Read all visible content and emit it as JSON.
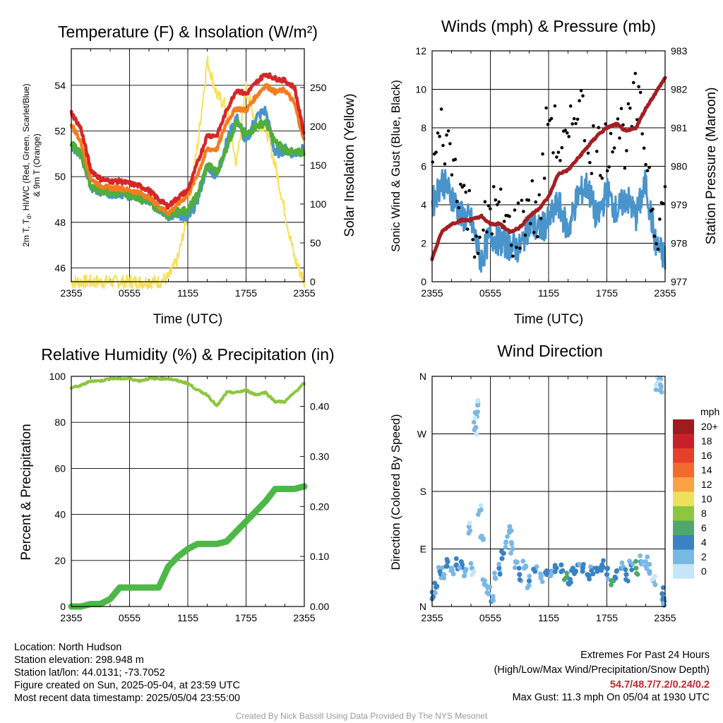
{
  "colors": {
    "t2m": "#d62728",
    "tdew": "#4a94cc",
    "hiwc": "#4fae3c",
    "t9m": "#f47d20",
    "solar": "#f7e05a",
    "wind": "#4a94cc",
    "gust": "#000000",
    "pressure": "#a31f24",
    "rh": "#8cc63f",
    "precip": "#4db848",
    "extremes": "#c0272d"
  },
  "xticks": [
    "2355",
    "0555",
    "1155",
    "1755",
    "2355"
  ],
  "panels": {
    "temperature": {
      "title": "Temperature (F) & Insolation (W/m²)",
      "xlabel": "Time (UTC)",
      "ylabel_left": [
        "2m T, T",
        "d",
        ", HI/WC (Red, Green, Scarlet/Blue)",
        "& 9m T (Orange)"
      ],
      "ylabel_right": "Solar Insolation (Yellow)",
      "left_ticks": [
        "46",
        "48",
        "50",
        "52",
        "54"
      ],
      "right_ticks": [
        "0",
        "50",
        "100",
        "150",
        "200",
        "250"
      ]
    },
    "winds": {
      "title": "Winds (mph) & Pressure (mb)",
      "xlabel": "Time (UTC)",
      "ylabel_left": "Sonic Wind & Gust (Blue, Black)",
      "ylabel_right": "Station Pressure (Maroon)",
      "left_ticks": [
        "0",
        "2",
        "4",
        "6",
        "8",
        "10",
        "12"
      ],
      "right_ticks": [
        "977",
        "978",
        "979",
        "980",
        "981",
        "982",
        "983"
      ]
    },
    "humidity": {
      "title": "Relative Humidity (%) & Precipitation (in)",
      "ylabel_left": "Percent & Precipitation",
      "left_ticks": [
        "0",
        "20",
        "40",
        "60",
        "80",
        "100"
      ],
      "right_ticks": [
        "0.00",
        "0.10",
        "0.20",
        "0.30",
        "0.40"
      ]
    },
    "direction": {
      "title": "Wind Direction",
      "ylabel_left": "Direction (Colored By Speed)",
      "left_ticks": [
        "N",
        "E",
        "S",
        "W",
        "N"
      ],
      "legend_title": "mph",
      "legend_labels": [
        "20+",
        "18",
        "16",
        "14",
        "12",
        "10",
        "8",
        "6",
        "4",
        "2",
        "0"
      ],
      "legend_colors": [
        "#9e1b1f",
        "#c8202a",
        "#e4402c",
        "#f26a2e",
        "#f9a243",
        "#ede15b",
        "#8cc63f",
        "#4fa86b",
        "#3a82c4",
        "#7ab8e4",
        "#c4e6f7"
      ]
    }
  },
  "info": {
    "location": "Location: North Hudson",
    "elevation": "Station elevation: 298.948 m",
    "latlon": "Station lat/lon: 44.0131; -73.7052",
    "created": "Figure created on Sun, 2025-05-04, at 23:59 UTC",
    "recent": "Most recent data timestamp: 2025/05/04 23:55:00",
    "extremes_title": "Extremes For Past 24 Hours",
    "extremes_sub": "(High/Low/Max Wind/Precipitation/Snow Depth)",
    "extremes_values": "54.7/48.7/7.2/0.24/0.2",
    "max_gust": "Max Gust: 11.3 mph On 05/04 at 1930 UTC",
    "credit": "Created By Nick Bassill Using Data Provided By The NYS Mesonet"
  },
  "chart_data": [
    {
      "type": "line",
      "title": "Temperature (F) & Insolation (W/m²)",
      "xlabel": "Time (UTC)",
      "xlim": [
        0,
        24
      ],
      "ylim": [
        45.4,
        55.6
      ],
      "y2lim": [
        0,
        300
      ],
      "x": [
        0,
        1,
        2,
        3,
        4,
        5,
        6,
        7,
        8,
        9,
        10,
        11,
        12,
        13,
        14,
        15,
        16,
        17,
        18,
        19,
        20,
        21,
        22,
        23,
        24
      ],
      "series": [
        {
          "key": "t2m",
          "values": [
            52.8,
            52.1,
            50.3,
            49.9,
            49.8,
            49.8,
            49.7,
            49.6,
            49.4,
            49.0,
            48.7,
            49.1,
            49.4,
            50.6,
            51.8,
            51.8,
            52.9,
            53.8,
            53.6,
            54.1,
            54.5,
            54.3,
            54.2,
            53.9,
            51.8
          ]
        },
        {
          "key": "t9m",
          "values": [
            52.3,
            51.5,
            49.9,
            49.6,
            49.5,
            49.5,
            49.4,
            49.3,
            49.1,
            48.7,
            48.4,
            48.8,
            49.2,
            50.1,
            51.2,
            51.2,
            52.4,
            53.0,
            52.9,
            53.5,
            54.0,
            53.7,
            53.8,
            53.2,
            51.5
          ]
        },
        {
          "key": "hiwc",
          "values": [
            51.4,
            51.0,
            49.6,
            49.4,
            49.3,
            49.3,
            49.2,
            49.1,
            48.9,
            48.6,
            48.3,
            48.5,
            48.5,
            49.2,
            50.5,
            50.2,
            51.3,
            52.4,
            51.8,
            52.2,
            52.4,
            51.5,
            51.2,
            51.0,
            51.1
          ]
        },
        {
          "key": "tdew",
          "values": [
            51.4,
            51.0,
            49.5,
            49.4,
            49.3,
            49.3,
            49.2,
            49.1,
            48.9,
            48.6,
            48.3,
            48.4,
            48.1,
            49.0,
            50.5,
            50.0,
            51.5,
            52.6,
            51.5,
            52.6,
            52.9,
            51.0,
            51.2,
            51.0,
            51.2
          ]
        },
        {
          "key": "solar",
          "axis": "right",
          "values": [
            0,
            0,
            0,
            0,
            0,
            0,
            0,
            0,
            0,
            0,
            5,
            30,
            90,
            175,
            285,
            240,
            225,
            150,
            250,
            205,
            200,
            150,
            90,
            30,
            0
          ]
        }
      ]
    },
    {
      "type": "line",
      "title": "Winds (mph) & Pressure (mb)",
      "xlabel": "Time (UTC)",
      "xlim": [
        0,
        24
      ],
      "ylim": [
        0,
        12
      ],
      "y2lim": [
        977,
        983
      ],
      "x": [
        0,
        1,
        2,
        3,
        4,
        5,
        6,
        7,
        8,
        9,
        10,
        11,
        12,
        13,
        14,
        15,
        16,
        17,
        18,
        19,
        20,
        21,
        22,
        23,
        24
      ],
      "series": [
        {
          "key": "wind",
          "values": [
            4.0,
            5.3,
            4.5,
            3.4,
            3.2,
            1.1,
            2.4,
            2.1,
            1.9,
            1.7,
            3.0,
            2.7,
            3.1,
            4.1,
            2.6,
            4.5,
            5.0,
            3.2,
            4.7,
            3.6,
            4.4,
            3.4,
            5.1,
            2.0,
            1.2
          ]
        },
        {
          "key": "gust",
          "values": [
            5.8,
            7.9,
            6.5,
            4.9,
            3.3,
            2.0,
            3.9,
            3.5,
            2.6,
            2.9,
            4.3,
            3.1,
            9.0,
            7.0,
            6.7,
            9.9,
            7.4,
            6.9,
            7.0,
            8.7,
            7.2,
            9.5,
            7.0,
            3.0,
            4.0
          ]
        },
        {
          "key": "pressure",
          "axis": "right",
          "values": [
            977.6,
            978.3,
            978.5,
            978.6,
            978.6,
            978.7,
            978.5,
            978.5,
            978.3,
            978.4,
            978.7,
            978.9,
            979.2,
            979.8,
            979.9,
            980.2,
            980.5,
            980.8,
            981.0,
            981.1,
            980.9,
            981.0,
            981.5,
            981.9,
            982.3
          ]
        }
      ]
    },
    {
      "type": "line",
      "title": "Relative Humidity (%) & Precipitation (in)",
      "xlim": [
        0,
        24
      ],
      "ylim": [
        0,
        100
      ],
      "y2lim": [
        0,
        0.46
      ],
      "x": [
        0,
        1,
        2,
        3,
        4,
        5,
        6,
        7,
        8,
        9,
        10,
        11,
        12,
        13,
        14,
        15,
        16,
        17,
        18,
        19,
        20,
        21,
        22,
        23,
        24
      ],
      "series": [
        {
          "key": "rh",
          "values": [
            95,
            96,
            98,
            98,
            99,
            99,
            99,
            98,
            99,
            99,
            99,
            98,
            97,
            94,
            92,
            87,
            93,
            93,
            94,
            92,
            93,
            89,
            89,
            93,
            97
          ]
        },
        {
          "key": "precip",
          "axis": "right",
          "values": [
            0.0,
            0.0,
            0.005,
            0.005,
            0.015,
            0.038,
            0.038,
            0.038,
            0.038,
            0.038,
            0.08,
            0.1,
            0.115,
            0.125,
            0.125,
            0.125,
            0.13,
            0.15,
            0.17,
            0.19,
            0.21,
            0.235,
            0.235,
            0.235,
            0.24
          ]
        }
      ]
    },
    {
      "type": "scatter",
      "title": "Wind Direction",
      "xlim": [
        0,
        24
      ],
      "ylim": [
        0,
        360
      ],
      "points": [
        {
          "x": 0.1,
          "dir": 15,
          "speed": 4
        },
        {
          "x": 0.4,
          "dir": 30,
          "speed": 3
        },
        {
          "x": 0.8,
          "dir": 55,
          "speed": 3
        },
        {
          "x": 1.2,
          "dir": 50,
          "speed": 2
        },
        {
          "x": 1.6,
          "dir": 70,
          "speed": 3
        },
        {
          "x": 2.0,
          "dir": 60,
          "speed": 2
        },
        {
          "x": 2.5,
          "dir": 65,
          "speed": 4
        },
        {
          "x": 3.0,
          "dir": 70,
          "speed": 3
        },
        {
          "x": 3.4,
          "dir": 55,
          "speed": 2
        },
        {
          "x": 3.8,
          "dir": 125,
          "speed": 1
        },
        {
          "x": 4.1,
          "dir": 60,
          "speed": 1
        },
        {
          "x": 4.5,
          "dir": 280,
          "speed": 1
        },
        {
          "x": 4.6,
          "dir": 297,
          "speed": 1
        },
        {
          "x": 4.7,
          "dir": 315,
          "speed": 1
        },
        {
          "x": 4.9,
          "dir": 150,
          "speed": 1
        },
        {
          "x": 5.1,
          "dir": 110,
          "speed": 2
        },
        {
          "x": 5.4,
          "dir": 40,
          "speed": 2
        },
        {
          "x": 5.8,
          "dir": 20,
          "speed": 2
        },
        {
          "x": 6.1,
          "dir": 8,
          "speed": 3
        },
        {
          "x": 6.5,
          "dir": 45,
          "speed": 2
        },
        {
          "x": 6.9,
          "dir": 60,
          "speed": 3
        },
        {
          "x": 7.2,
          "dir": 75,
          "speed": 3
        },
        {
          "x": 7.6,
          "dir": 100,
          "speed": 2
        },
        {
          "x": 8.0,
          "dir": 125,
          "speed": 2
        },
        {
          "x": 8.3,
          "dir": 90,
          "speed": 2
        },
        {
          "x": 8.6,
          "dir": 70,
          "speed": 2
        },
        {
          "x": 9.0,
          "dir": 50,
          "speed": 3
        },
        {
          "x": 9.5,
          "dir": 60,
          "speed": 2
        },
        {
          "x": 10.0,
          "dir": 40,
          "speed": 3
        },
        {
          "x": 10.6,
          "dir": 55,
          "speed": 3
        },
        {
          "x": 11.2,
          "dir": 45,
          "speed": 2
        },
        {
          "x": 11.8,
          "dir": 50,
          "speed": 4
        },
        {
          "x": 12.3,
          "dir": 55,
          "speed": 3
        },
        {
          "x": 12.8,
          "dir": 60,
          "speed": 4
        },
        {
          "x": 13.3,
          "dir": 65,
          "speed": 4
        },
        {
          "x": 13.8,
          "dir": 45,
          "speed": 6
        },
        {
          "x": 14.1,
          "dir": 35,
          "speed": 4
        },
        {
          "x": 14.5,
          "dir": 60,
          "speed": 4
        },
        {
          "x": 15.0,
          "dir": 65,
          "speed": 3
        },
        {
          "x": 15.5,
          "dir": 55,
          "speed": 4
        },
        {
          "x": 16.0,
          "dir": 50,
          "speed": 4
        },
        {
          "x": 16.5,
          "dir": 60,
          "speed": 3
        },
        {
          "x": 17.0,
          "dir": 55,
          "speed": 4
        },
        {
          "x": 17.5,
          "dir": 65,
          "speed": 4
        },
        {
          "x": 18.0,
          "dir": 50,
          "speed": 3
        },
        {
          "x": 18.5,
          "dir": 40,
          "speed": 6
        },
        {
          "x": 19.0,
          "dir": 55,
          "speed": 4
        },
        {
          "x": 19.5,
          "dir": 60,
          "speed": 3
        },
        {
          "x": 20.0,
          "dir": 50,
          "speed": 4
        },
        {
          "x": 20.5,
          "dir": 65,
          "speed": 3
        },
        {
          "x": 21.0,
          "dir": 60,
          "speed": 6
        },
        {
          "x": 21.5,
          "dir": 70,
          "speed": 3
        },
        {
          "x": 22.0,
          "dir": 70,
          "speed": 2
        },
        {
          "x": 22.4,
          "dir": 55,
          "speed": 2
        },
        {
          "x": 22.8,
          "dir": 40,
          "speed": 1
        },
        {
          "x": 23.2,
          "dir": 348,
          "speed": 1
        },
        {
          "x": 23.4,
          "dir": 355,
          "speed": 1
        },
        {
          "x": 23.5,
          "dir": 338,
          "speed": 1
        },
        {
          "x": 23.7,
          "dir": 20,
          "speed": 4
        },
        {
          "x": 23.9,
          "dir": 8,
          "speed": 3
        }
      ]
    }
  ]
}
